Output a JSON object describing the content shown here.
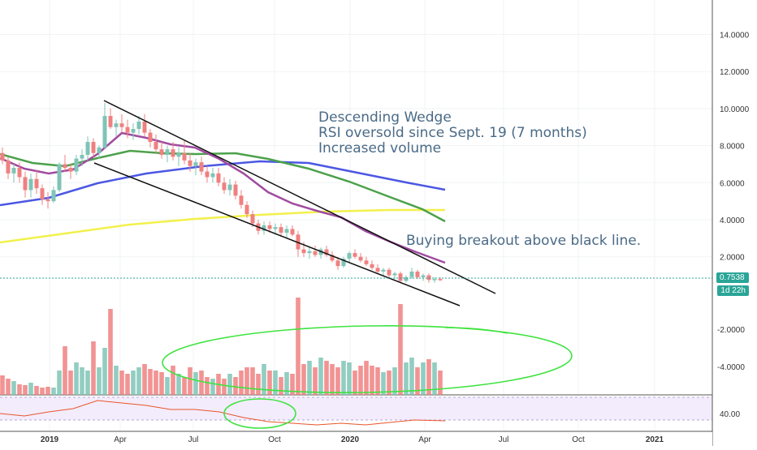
{
  "chart_data": {
    "type": "candlestick",
    "x_ticks": [
      "2019",
      "Apr",
      "Jul",
      "Oct",
      "2020",
      "Apr",
      "Jul",
      "Oct",
      "2021"
    ],
    "price_axis": {
      "ticks": [
        "14.0000",
        "12.0000",
        "10.0000",
        "8.0000",
        "6.0000",
        "4.0000",
        "2.0000"
      ],
      "ylim": [
        -0.5,
        15.5
      ],
      "last_price": "0.7538",
      "countdown": "1d 22h"
    },
    "volume_axis": {
      "ticks": [
        "-2.0000",
        "-4.0000"
      ]
    },
    "rsi_axis": {
      "ticks": [
        "40.00"
      ]
    },
    "annotations": {
      "pattern": [
        "Descending Wedge",
        "RSI oversold since Sept. 19 (7 months)",
        "Increased volume"
      ],
      "trade": "Buying breakout above black line."
    },
    "candles": [
      [
        7.6,
        7.9,
        7.0,
        7.2
      ],
      [
        7.2,
        7.4,
        6.2,
        6.5
      ],
      [
        6.5,
        7.0,
        6.0,
        6.8
      ],
      [
        6.8,
        7.1,
        6.0,
        6.3
      ],
      [
        6.3,
        6.6,
        5.2,
        5.6
      ],
      [
        5.6,
        6.5,
        5.2,
        6.2
      ],
      [
        6.2,
        6.7,
        5.4,
        5.7
      ],
      [
        5.7,
        5.9,
        4.8,
        5.1
      ],
      [
        5.1,
        5.5,
        4.6,
        5.0
      ],
      [
        5.0,
        5.8,
        4.9,
        5.6
      ],
      [
        5.6,
        7.1,
        5.5,
        7.0
      ],
      [
        7.0,
        7.5,
        6.6,
        6.8
      ],
      [
        6.8,
        7.0,
        6.2,
        6.6
      ],
      [
        6.6,
        7.5,
        6.4,
        7.3
      ],
      [
        7.3,
        7.8,
        6.9,
        7.5
      ],
      [
        7.5,
        8.5,
        7.2,
        8.2
      ],
      [
        8.2,
        8.4,
        7.4,
        7.6
      ],
      [
        7.6,
        8.0,
        7.3,
        7.9
      ],
      [
        7.9,
        10.3,
        7.8,
        9.6
      ],
      [
        9.6,
        10.0,
        8.9,
        9.0
      ],
      [
        9.0,
        9.4,
        8.5,
        9.2
      ],
      [
        9.2,
        9.7,
        8.7,
        9.0
      ],
      [
        9.0,
        9.4,
        8.4,
        8.7
      ],
      [
        8.7,
        9.2,
        8.3,
        8.9
      ],
      [
        8.9,
        9.6,
        8.6,
        9.3
      ],
      [
        9.3,
        9.7,
        8.5,
        8.7
      ],
      [
        8.7,
        8.9,
        7.9,
        8.2
      ],
      [
        8.2,
        8.6,
        7.6,
        7.8
      ],
      [
        7.8,
        8.2,
        7.3,
        7.5
      ],
      [
        7.5,
        8.0,
        7.1,
        7.8
      ],
      [
        7.8,
        8.2,
        7.2,
        7.4
      ],
      [
        7.4,
        7.9,
        6.9,
        7.6
      ],
      [
        7.6,
        8.3,
        7.0,
        7.2
      ],
      [
        7.2,
        7.6,
        6.6,
        6.9
      ],
      [
        6.9,
        7.3,
        6.4,
        7.1
      ],
      [
        7.1,
        7.4,
        6.4,
        6.6
      ],
      [
        6.6,
        6.9,
        6.0,
        6.3
      ],
      [
        6.3,
        6.8,
        6.0,
        6.5
      ],
      [
        6.5,
        6.8,
        5.8,
        6.0
      ],
      [
        6.0,
        6.3,
        5.4,
        5.6
      ],
      [
        5.6,
        6.2,
        5.3,
        5.9
      ],
      [
        5.9,
        6.1,
        5.1,
        5.3
      ],
      [
        5.3,
        5.6,
        4.6,
        4.8
      ],
      [
        4.8,
        5.0,
        4.1,
        4.3
      ],
      [
        4.3,
        4.5,
        3.6,
        3.8
      ],
      [
        3.8,
        4.0,
        3.2,
        3.4
      ],
      [
        3.4,
        3.9,
        3.2,
        3.7
      ],
      [
        3.7,
        3.9,
        3.3,
        3.5
      ],
      [
        3.5,
        3.8,
        3.2,
        3.6
      ],
      [
        3.6,
        3.8,
        3.1,
        3.3
      ],
      [
        3.3,
        3.7,
        3.0,
        3.5
      ],
      [
        3.5,
        3.7,
        3.1,
        3.2
      ],
      [
        3.2,
        3.4,
        2.0,
        2.4
      ],
      [
        2.4,
        2.8,
        2.0,
        2.2
      ],
      [
        2.2,
        2.5,
        1.9,
        2.3
      ],
      [
        2.3,
        2.6,
        2.0,
        2.1
      ],
      [
        2.1,
        2.5,
        1.9,
        2.4
      ],
      [
        2.4,
        2.6,
        2.0,
        2.1
      ],
      [
        2.1,
        2.3,
        1.7,
        1.8
      ],
      [
        1.8,
        2.0,
        1.3,
        1.5
      ],
      [
        1.5,
        2.0,
        1.4,
        1.9
      ],
      [
        1.9,
        2.3,
        1.7,
        2.2
      ],
      [
        2.2,
        2.4,
        1.9,
        2.0
      ],
      [
        2.0,
        2.2,
        1.7,
        1.8
      ],
      [
        1.8,
        2.0,
        1.5,
        1.6
      ],
      [
        1.6,
        1.8,
        1.3,
        1.4
      ],
      [
        1.4,
        1.6,
        1.1,
        1.2
      ],
      [
        1.2,
        1.4,
        1.0,
        1.3
      ],
      [
        1.3,
        1.4,
        0.9,
        1.0
      ],
      [
        1.0,
        1.2,
        0.8,
        1.1
      ],
      [
        1.1,
        1.2,
        0.6,
        0.7
      ],
      [
        0.7,
        1.0,
        0.6,
        0.9
      ],
      [
        0.9,
        1.4,
        0.8,
        1.2
      ],
      [
        1.2,
        1.3,
        0.8,
        0.9
      ],
      [
        0.9,
        1.1,
        0.7,
        1.0
      ],
      [
        1.0,
        1.1,
        0.6,
        0.75
      ],
      [
        0.75,
        0.9,
        0.6,
        0.8
      ],
      [
        0.8,
        0.9,
        0.7,
        0.75
      ]
    ],
    "colors": {
      "up": "#7fc4b6",
      "down": "#f08080",
      "rsi": "#e8552a",
      "annotation": "#4a6a86"
    }
  }
}
